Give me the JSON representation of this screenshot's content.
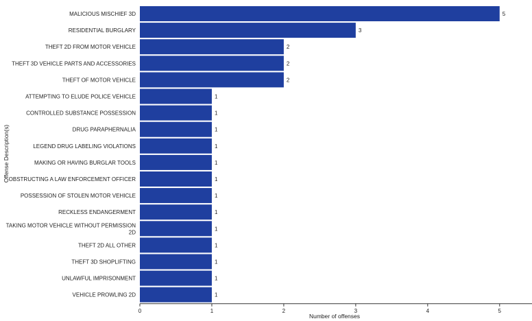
{
  "chart_data": {
    "type": "bar",
    "orientation": "horizontal",
    "title": "",
    "xlabel": "Number of offenses",
    "ylabel": "Offense Description(s)",
    "xlim": [
      0,
      5.45
    ],
    "xticks": [
      0,
      1,
      2,
      3,
      4,
      5
    ],
    "bar_color": "#1f3f9f",
    "categories": [
      "MALICIOUS MISCHIEF 3D",
      "RESIDENTIAL BURGLARY",
      "THEFT 2D FROM MOTOR VEHICLE",
      "THEFT 3D VEHICLE PARTS AND ACCESSORIES",
      "THEFT OF MOTOR VEHICLE",
      "ATTEMPTING TO ELUDE POLICE VEHICLE",
      "CONTROLLED SUBSTANCE POSSESSION",
      "DRUG PARAPHERNALIA",
      "LEGEND DRUG LABELING VIOLATIONS",
      "MAKING OR HAVING BURGLAR TOOLS",
      "OBSTRUCTING A LAW ENFORCEMENT OFFICER",
      "POSSESSION OF STOLEN MOTOR VEHICLE",
      "RECKLESS ENDANGERMENT",
      "TAKING MOTOR VEHICLE WITHOUT PERMISSION 2D",
      "THEFT 2D ALL OTHER",
      "THEFT 3D SHOPLIFTING",
      "UNLAWFUL IMPRISONMENT",
      "VEHICLE PROWLING 2D"
    ],
    "category_lines": [
      [
        "MALICIOUS MISCHIEF 3D"
      ],
      [
        "RESIDENTIAL BURGLARY"
      ],
      [
        "THEFT 2D FROM MOTOR VEHICLE"
      ],
      [
        "THEFT 3D VEHICLE PARTS AND ACCESSORIES"
      ],
      [
        "THEFT OF MOTOR VEHICLE"
      ],
      [
        "ATTEMPTING TO ELUDE POLICE VEHICLE"
      ],
      [
        "CONTROLLED SUBSTANCE POSSESSION"
      ],
      [
        "DRUG PARAPHERNALIA"
      ],
      [
        "LEGEND DRUG LABELING VIOLATIONS"
      ],
      [
        "MAKING OR HAVING BURGLAR TOOLS"
      ],
      [
        "OBSTRUCTING A LAW ENFORCEMENT OFFICER"
      ],
      [
        "POSSESSION OF STOLEN MOTOR VEHICLE"
      ],
      [
        "RECKLESS ENDANGERMENT"
      ],
      [
        "TAKING MOTOR VEHICLE WITHOUT PERMISSION",
        "2D"
      ],
      [
        "THEFT 2D ALL OTHER"
      ],
      [
        "THEFT 3D SHOPLIFTING"
      ],
      [
        "UNLAWFUL IMPRISONMENT"
      ],
      [
        "VEHICLE PROWLING 2D"
      ]
    ],
    "values": [
      5,
      3,
      2,
      2,
      2,
      1,
      1,
      1,
      1,
      1,
      1,
      1,
      1,
      1,
      1,
      1,
      1,
      1
    ]
  }
}
